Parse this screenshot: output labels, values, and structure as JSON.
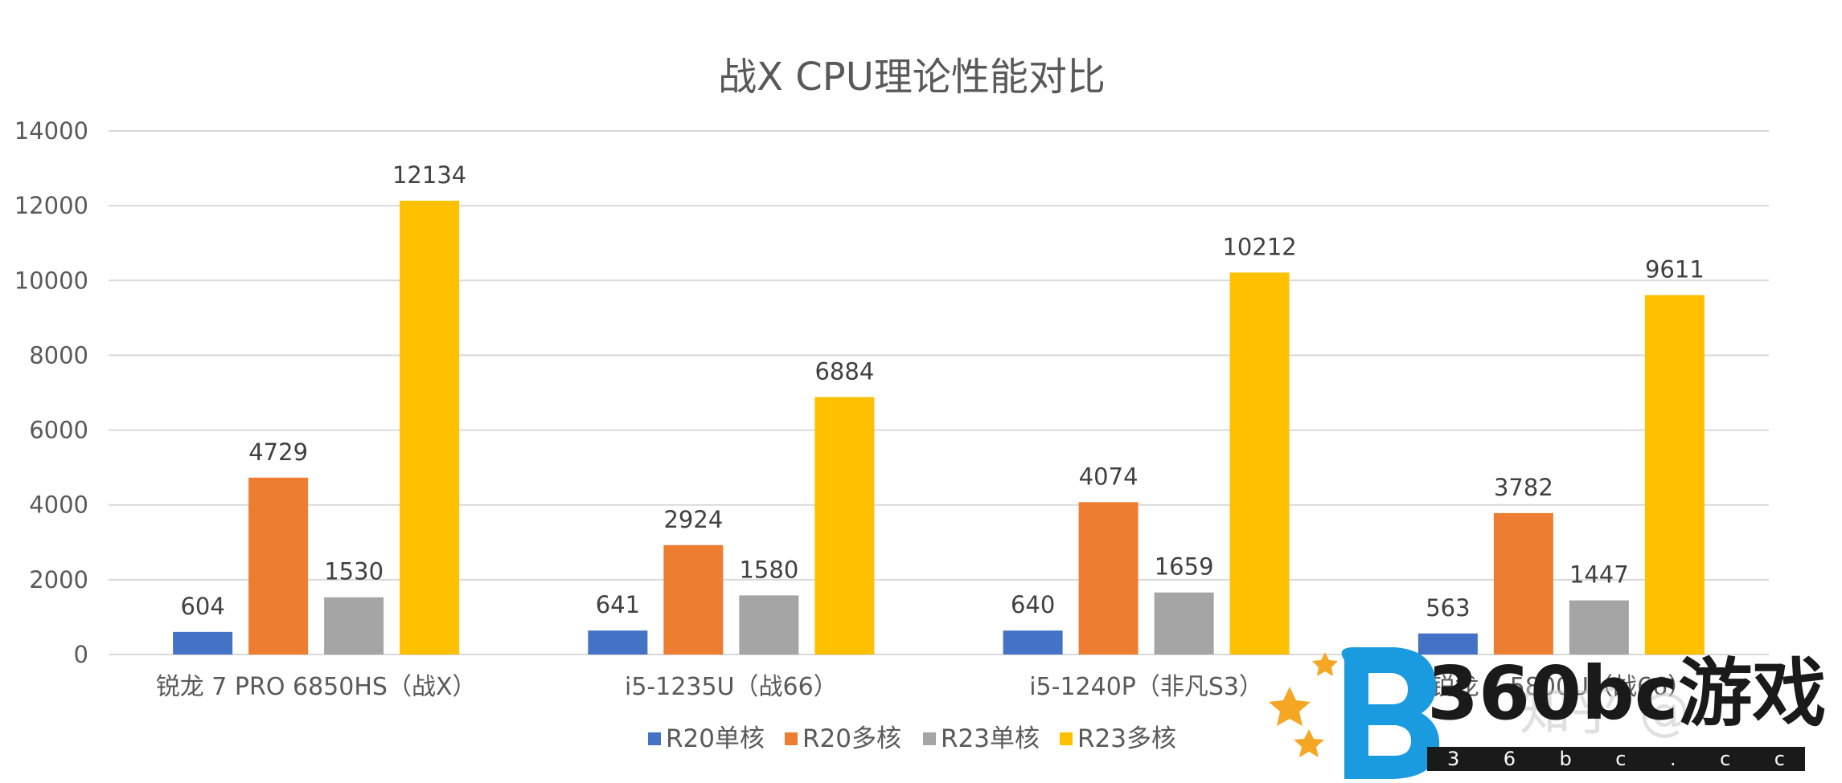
{
  "chart_data": {
    "type": "bar",
    "title": "战X CPU理论性能对比",
    "categories": [
      "锐龙 7 PRO 6850HS（战X）",
      "i5-1235U（战66）",
      "i5-1240P（非凡S3）",
      "锐龙 7 5800U（战66）"
    ],
    "series": [
      {
        "name": "R20单核",
        "values": [
          604,
          641,
          640,
          563
        ],
        "color": "#4472c4"
      },
      {
        "name": "R20多核",
        "values": [
          4729,
          2924,
          4074,
          3782
        ],
        "color": "#ed7d31"
      },
      {
        "name": "R23单核",
        "values": [
          1530,
          1580,
          1659,
          1447
        ],
        "color": "#a5a5a5"
      },
      {
        "name": "R23多核",
        "values": [
          12134,
          6884,
          10212,
          9611
        ],
        "color": "#ffc000"
      }
    ],
    "ylim": [
      0,
      14000
    ],
    "yticks": [
      0,
      2000,
      4000,
      6000,
      8000,
      10000,
      12000,
      14000
    ],
    "xlabel": "",
    "ylabel": "",
    "grid": true,
    "legend_position": "bottom"
  },
  "watermark": {
    "brand": "360bc游戏",
    "domain": "3 6 b c . c c",
    "faint_text": "知乎 @"
  },
  "colors": {
    "text": "#595959",
    "grid": "#d9d9d9",
    "logo_blue": "#1a9be0",
    "logo_orange": "#f5a623"
  }
}
